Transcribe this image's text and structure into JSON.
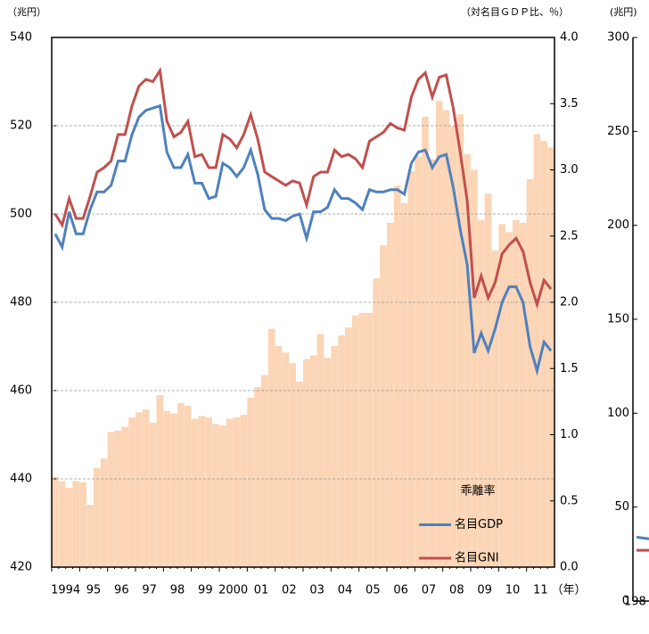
{
  "chart_data": [
    {
      "type": "combo",
      "ylabel": "（兆円）",
      "y2label": "（対名目ＧＤＰ比、％）",
      "xlabel": "（年）",
      "categories": [
        "1994",
        null,
        null,
        null,
        "95",
        null,
        null,
        null,
        "96",
        null,
        null,
        null,
        "97",
        null,
        null,
        null,
        "98",
        null,
        null,
        null,
        "99",
        null,
        null,
        null,
        "2000",
        null,
        null,
        null,
        "01",
        null,
        null,
        null,
        "02",
        null,
        null,
        null,
        "03",
        null,
        null,
        null,
        "04",
        null,
        null,
        null,
        "05",
        null,
        null,
        null,
        "06",
        null,
        null,
        null,
        "07",
        null,
        null,
        null,
        "08",
        null,
        null,
        null,
        "09",
        null,
        null,
        null,
        "10",
        null,
        null,
        null,
        "11",
        null,
        null,
        null
      ],
      "ylim": [
        420,
        540
      ],
      "yticks": [
        420,
        440,
        460,
        480,
        500,
        520,
        540
      ],
      "y2lim": [
        0,
        4
      ],
      "y2ticks": [
        {
          "value": 0,
          "label": "0.0"
        },
        {
          "value": 0.5,
          "label": "0.5"
        },
        {
          "value": 1,
          "label": "1.0"
        },
        {
          "value": 1.5,
          "label": "1.5"
        },
        {
          "value": 2,
          "label": "2.0"
        },
        {
          "value": 2.5,
          "label": "2.5"
        },
        {
          "value": 3,
          "label": "3.0"
        },
        {
          "value": 3.5,
          "label": "3.5"
        },
        {
          "value": 4,
          "label": "4.0"
        }
      ],
      "grid": true,
      "series": [
        {
          "name": "乖離率",
          "type": "bar",
          "axis": "y2",
          "color": "#fbd5b5",
          "values": [
            0.68,
            0.65,
            0.6,
            0.65,
            0.64,
            0.47,
            0.75,
            0.82,
            1.02,
            1.03,
            1.06,
            1.13,
            1.17,
            1.19,
            1.09,
            1.3,
            1.18,
            1.16,
            1.24,
            1.22,
            1.12,
            1.14,
            1.13,
            1.08,
            1.07,
            1.12,
            1.13,
            1.15,
            1.28,
            1.36,
            1.45,
            1.8,
            1.67,
            1.62,
            1.54,
            1.4,
            1.57,
            1.6,
            1.76,
            1.58,
            1.67,
            1.75,
            1.81,
            1.9,
            1.92,
            1.92,
            2.18,
            2.43,
            2.6,
            2.88,
            2.75,
            2.99,
            3.1,
            3.4,
            3.08,
            3.52,
            3.45,
            3.33,
            3.42,
            3.12,
            3.0,
            2.62,
            2.82,
            2.39,
            2.59,
            2.53,
            2.62,
            2.6,
            2.93,
            3.27,
            3.22,
            3.17
          ]
        },
        {
          "name": "名目GDP",
          "type": "line",
          "color": "#4f81bd",
          "values": [
            495.5,
            492.5,
            500.5,
            495.5,
            495.5,
            501,
            505,
            505,
            506.5,
            512,
            512,
            518,
            522,
            523.5,
            524,
            524.5,
            514,
            510.5,
            510.5,
            513.5,
            507,
            507,
            503.5,
            504,
            511.5,
            510.5,
            508.5,
            510.5,
            514.5,
            509,
            501,
            499,
            499,
            498.5,
            499.5,
            500,
            494.5,
            500.5,
            500.5,
            501.5,
            505.5,
            503.5,
            503.5,
            502.5,
            501,
            505.5,
            505,
            505,
            505.5,
            505.5,
            504.5,
            511.5,
            514,
            514.5,
            510.5,
            513,
            513.5,
            506,
            496.5,
            488.5,
            468.5,
            473,
            469,
            474,
            480,
            483.5,
            483.5,
            480,
            470,
            464.5,
            471,
            469
          ]
        },
        {
          "name": "名目GNI",
          "type": "line",
          "color": "#c0504d",
          "values": [
            500,
            497.5,
            503.5,
            499,
            499,
            504,
            509.5,
            510.5,
            512,
            518,
            518,
            524.5,
            529,
            530.5,
            530,
            532.5,
            521,
            517.5,
            518.5,
            521,
            513,
            513.5,
            510.5,
            510.5,
            518,
            517,
            515,
            518,
            522.5,
            517,
            509.5,
            508.5,
            507.5,
            506.5,
            507.5,
            507,
            502,
            508.5,
            509.5,
            509.5,
            514.5,
            513,
            513.5,
            512.5,
            510.5,
            516.5,
            517.5,
            518.5,
            520.5,
            519.5,
            519,
            526.5,
            530.5,
            532,
            526.5,
            531,
            531.5,
            524,
            514,
            503,
            481,
            486,
            481,
            484.5,
            491,
            493,
            494.5,
            491.5,
            484.5,
            479.5,
            485,
            483
          ]
        }
      ]
    },
    {
      "type": "line",
      "ylabel": "(兆円)",
      "categories": [
        "198",
        null
      ],
      "ylim": [
        0,
        300
      ],
      "yticks": [
        0,
        50,
        100,
        150,
        200,
        250,
        300
      ],
      "series": [
        {
          "color": "#4f81bd",
          "values": [
            34,
            33
          ]
        },
        {
          "color": "#c0504d",
          "values": [
            27,
            27
          ]
        }
      ]
    }
  ]
}
